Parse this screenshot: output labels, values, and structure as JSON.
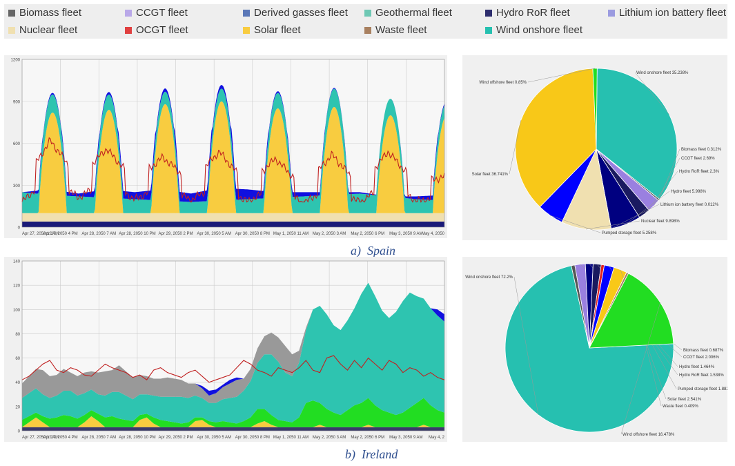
{
  "legend": {
    "items": [
      {
        "label": "Biomass fleet",
        "color": "#666666"
      },
      {
        "label": "CCGT fleet",
        "color": "#b9a8e8"
      },
      {
        "label": "Derived gasses fleet",
        "color": "#5b78b8"
      },
      {
        "label": "Geothermal fleet",
        "color": "#6ec8b4"
      },
      {
        "label": "Hydro RoR fleet",
        "color": "#2e2e6e"
      },
      {
        "label": "Lithium ion battery fleet",
        "color": "#9b9be0"
      },
      {
        "label": "Nuclear fleet",
        "color": "#f0e0b0"
      },
      {
        "label": "OCGT fleet",
        "color": "#e04040"
      },
      {
        "label": "Solar fleet",
        "color": "#f8cc40"
      },
      {
        "label": "Waste fleet",
        "color": "#a88060"
      },
      {
        "label": "Wind onshore fleet",
        "color": "#26c0b0"
      }
    ]
  },
  "captions": {
    "a": "a)  Spain",
    "b": "b)  Ireland"
  },
  "chart_data": [
    {
      "type": "area",
      "country": "Spain",
      "ylim": [
        0,
        1200
      ],
      "yticks": [
        "0",
        "300",
        "600",
        "900",
        "1200"
      ],
      "xticks": [
        "Apr 27, 2050 12 AM",
        "Apr 27, 2050 4 PM",
        "Apr 28, 2050 7 AM",
        "Apr 28, 2050 10 PM",
        "Apr 29, 2050 2 PM",
        "Apr 30, 2050 5 AM",
        "Apr 30, 2050 8 PM",
        "May 1, 2050 11 AM",
        "May 2, 2050 3 AM",
        "May 2, 2050 6 PM",
        "May 3, 2050 9 AM",
        "May 4, 2050"
      ],
      "grid": true,
      "days": 7.5,
      "stack": [
        {
          "name": "Hydro RoR fleet",
          "color": "#1a1a78",
          "kind": "const",
          "values": [
            40
          ]
        },
        {
          "name": "Nuclear fleet",
          "color": "#f0e0b0",
          "kind": "const",
          "values": [
            60
          ]
        },
        {
          "name": "Solar fleet",
          "color": "#f8cc40",
          "kind": "peaks",
          "values": [
            720,
            740,
            780,
            800,
            750,
            760,
            700
          ]
        },
        {
          "name": "Wind onshore fleet",
          "color": "#2ec4b0",
          "kind": "wind",
          "values": [
            150,
            130,
            120,
            110,
            100,
            90,
            80,
            90,
            100,
            110,
            120,
            130,
            140,
            120,
            100,
            90
          ]
        },
        {
          "name": "Hydro fleet",
          "color": "#1010e0",
          "kind": "bumps",
          "values": [
            0,
            40,
            20,
            60,
            50,
            80,
            60,
            90,
            70,
            40,
            30,
            20,
            10,
            0,
            20,
            40
          ]
        }
      ],
      "line": {
        "name": "OCGT fleet",
        "color": "#c02020",
        "values": [
          300,
          620,
          350,
          560,
          330,
          500,
          320,
          540,
          300,
          490,
          280,
          520,
          290,
          540,
          310,
          360
        ]
      }
    },
    {
      "type": "pie",
      "country": "Spain",
      "slices": [
        {
          "label": "Wind onshore fleet",
          "value": 35.238,
          "text": "Wind onshore fleet  35.238%",
          "color": "#26c0b0"
        },
        {
          "label": "Biomass fleet",
          "value": 0.312,
          "text": "Biomass fleet  0.312%",
          "color": "#555555"
        },
        {
          "label": "CCGT fleet",
          "value": 2.69,
          "text": "CCGT fleet  2.69%",
          "color": "#9a80e0"
        },
        {
          "label": "Hydro RoR fleet",
          "value": 2.3,
          "text": "Hydro RoR fleet  2.3%",
          "color": "#1a1a60"
        },
        {
          "label": "Hydro fleet",
          "value": 5.998,
          "text": "Hydro fleet  5.998%",
          "color": "#000080"
        },
        {
          "label": "Lithium ion battery fleet",
          "value": 0.012,
          "text": "Lithium ion battery fleet  0.012%",
          "color": "#8080ff"
        },
        {
          "label": "Nuclear fleet",
          "value": 9.898,
          "text": "Nuclear fleet  9.898%",
          "color": "#f0e0b0"
        },
        {
          "label": "Pumped storage fleet",
          "value": 5.258,
          "text": "Pumped storage fleet  5.258%",
          "color": "#0000ff"
        },
        {
          "label": "Solar fleet",
          "value": 36.741,
          "text": "Solar fleet  36.741%",
          "color": "#f8c818"
        },
        {
          "label": "Wind offshore fleet",
          "value": 0.85,
          "text": "Wind offshore fleet  0.85%",
          "color": "#22dd22"
        }
      ]
    },
    {
      "type": "area",
      "country": "Ireland",
      "ylim": [
        0,
        140
      ],
      "yticks": [
        "0",
        "20",
        "40",
        "60",
        "80",
        "100",
        "120",
        "140"
      ],
      "xticks": [
        "Apr 27, 2050 12 AM",
        "Apr 27, 2050 4 PM",
        "Apr 28, 2050 7 AM",
        "Apr 28, 2050 10 PM",
        "Apr 29, 2050 2 PM",
        "Apr 30, 2050 5 AM",
        "Apr 30, 2050 8 PM",
        "May 1, 2050 11 AM",
        "May 2, 2050 3 AM",
        "May 2, 2050 6 PM",
        "May 3, 2050 9 AM",
        "May 4, 2"
      ],
      "grid": true,
      "stack": [
        {
          "name": "Hydro RoR fleet",
          "color": "#3a3a6a",
          "values": [
            3,
            3,
            3,
            3,
            3,
            3,
            3,
            3,
            3,
            3,
            3,
            3,
            3,
            3,
            3,
            3,
            3,
            3,
            3,
            3,
            3,
            3,
            3,
            3,
            3,
            3,
            3,
            3,
            3,
            3,
            3,
            3,
            3,
            3,
            3,
            3,
            3,
            3,
            3,
            3,
            3,
            3,
            3,
            3,
            3,
            3,
            3,
            3,
            3,
            3,
            3,
            3,
            3,
            3,
            3,
            3,
            3,
            3,
            3,
            3,
            3,
            3
          ]
        },
        {
          "name": "Solar fleet",
          "color": "#f8cc40",
          "values": [
            0,
            4,
            8,
            4,
            0,
            0,
            0,
            0,
            0,
            4,
            9,
            5,
            0,
            0,
            0,
            0,
            0,
            6,
            8,
            3,
            0,
            0,
            0,
            0,
            0,
            5,
            6,
            2,
            0,
            0,
            0,
            0,
            0,
            0,
            3,
            5,
            2,
            0,
            0,
            0,
            0,
            0,
            0,
            2,
            0,
            0,
            0,
            0,
            0,
            0,
            2,
            0,
            0,
            0,
            0,
            0,
            0,
            0,
            2,
            0,
            0,
            0
          ]
        },
        {
          "name": "Wind offshore fleet",
          "color": "#22dd22",
          "values": [
            6,
            5,
            4,
            5,
            7,
            8,
            10,
            9,
            7,
            6,
            5,
            6,
            8,
            9,
            7,
            6,
            5,
            4,
            3,
            5,
            6,
            5,
            4,
            3,
            4,
            3,
            2,
            3,
            4,
            5,
            4,
            3,
            5,
            8,
            12,
            10,
            8,
            6,
            5,
            4,
            8,
            20,
            22,
            18,
            15,
            12,
            10,
            14,
            18,
            20,
            22,
            18,
            14,
            12,
            10,
            12,
            16,
            20,
            22,
            18,
            14,
            12
          ]
        },
        {
          "name": "Wind onshore fleet",
          "color": "#2ec4b0",
          "values": [
            18,
            19,
            20,
            18,
            17,
            18,
            20,
            21,
            19,
            18,
            17,
            16,
            18,
            20,
            22,
            20,
            18,
            17,
            16,
            18,
            19,
            20,
            21,
            22,
            20,
            18,
            16,
            15,
            16,
            18,
            20,
            22,
            25,
            30,
            38,
            45,
            50,
            48,
            40,
            38,
            45,
            60,
            75,
            80,
            78,
            72,
            70,
            74,
            80,
            90,
            95,
            90,
            82,
            78,
            85,
            92,
            95,
            88,
            82,
            80,
            78,
            75
          ]
        },
        {
          "name": "Biomass fleet",
          "color": "#999999",
          "values": [
            12,
            14,
            16,
            20,
            18,
            17,
            18,
            15,
            16,
            17,
            15,
            18,
            20,
            18,
            22,
            20,
            18,
            16,
            15,
            14,
            15,
            16,
            15,
            14,
            12,
            10,
            8,
            6,
            8,
            10,
            12,
            14,
            10,
            10,
            12,
            15,
            18,
            20,
            22,
            18,
            10,
            2,
            0,
            0,
            0,
            0,
            0,
            0,
            0,
            0,
            0,
            0,
            0,
            0,
            0,
            0,
            0,
            0,
            0,
            0,
            0,
            0
          ]
        },
        {
          "name": "Hydro fleet",
          "color": "#1010e0",
          "values": [
            0,
            0,
            0,
            0,
            0,
            0,
            0,
            0,
            0,
            0,
            0,
            0,
            0,
            0,
            0,
            0,
            0,
            0,
            0,
            0,
            0,
            0,
            0,
            0,
            0,
            0,
            2,
            4,
            3,
            2,
            3,
            2,
            0,
            0,
            0,
            0,
            0,
            0,
            0,
            0,
            0,
            0,
            0,
            0,
            0,
            0,
            0,
            0,
            0,
            0,
            0,
            0,
            0,
            0,
            0,
            0,
            0,
            0,
            0,
            0,
            5,
            6
          ]
        }
      ],
      "line": {
        "name": "OCGT fleet",
        "color": "#c02020",
        "values": [
          42,
          45,
          50,
          55,
          58,
          50,
          48,
          52,
          50,
          46,
          45,
          50,
          55,
          52,
          50,
          48,
          44,
          46,
          42,
          50,
          52,
          48,
          46,
          44,
          48,
          50,
          45,
          40,
          42,
          44,
          46,
          52,
          58,
          55,
          50,
          48,
          45,
          52,
          50,
          48,
          52,
          58,
          50,
          48,
          60,
          62,
          55,
          50,
          58,
          52,
          60,
          55,
          50,
          58,
          55,
          48,
          52,
          50,
          45,
          48,
          44,
          42
        ]
      }
    },
    {
      "type": "pie",
      "country": "Ireland",
      "slices": [
        {
          "label": "Wind onshore fleet",
          "value": 72.2,
          "text": "Wind onshore fleet  72.2%",
          "color": "#26c0b0"
        },
        {
          "label": "Biomass fleet",
          "value": 0.687,
          "text": "Biomass fleet  0.687%",
          "color": "#555555"
        },
        {
          "label": "CCGT fleet",
          "value": 2.006,
          "text": "CCGT fleet  2.006%",
          "color": "#9a80e0"
        },
        {
          "label": "Hydro fleet",
          "value": 1.464,
          "text": "Hydro fleet  1.464%",
          "color": "#000080"
        },
        {
          "label": "Hydro RoR fleet",
          "value": 1.538,
          "text": "Hydro RoR fleet  1.538%",
          "color": "#1a1a60"
        },
        {
          "label": "OCGT fleet",
          "value": 0.6,
          "text": "",
          "color": "#e02020"
        },
        {
          "label": "Pumped storage fleet",
          "value": 1.882,
          "text": "Pumped storage fleet  1.882%",
          "color": "#0000ff"
        },
        {
          "label": "Solar fleet",
          "value": 2.541,
          "text": "Solar fleet  2.541%",
          "color": "#f8c818"
        },
        {
          "label": "Waste fleet",
          "value": 0.409,
          "text": "Waste fleet  0.409%",
          "color": "#a88060"
        },
        {
          "label": "Wind offshore fleet",
          "value": 16.478,
          "text": "Wind offshore fleet  16.478%",
          "color": "#22dd22"
        }
      ]
    }
  ]
}
